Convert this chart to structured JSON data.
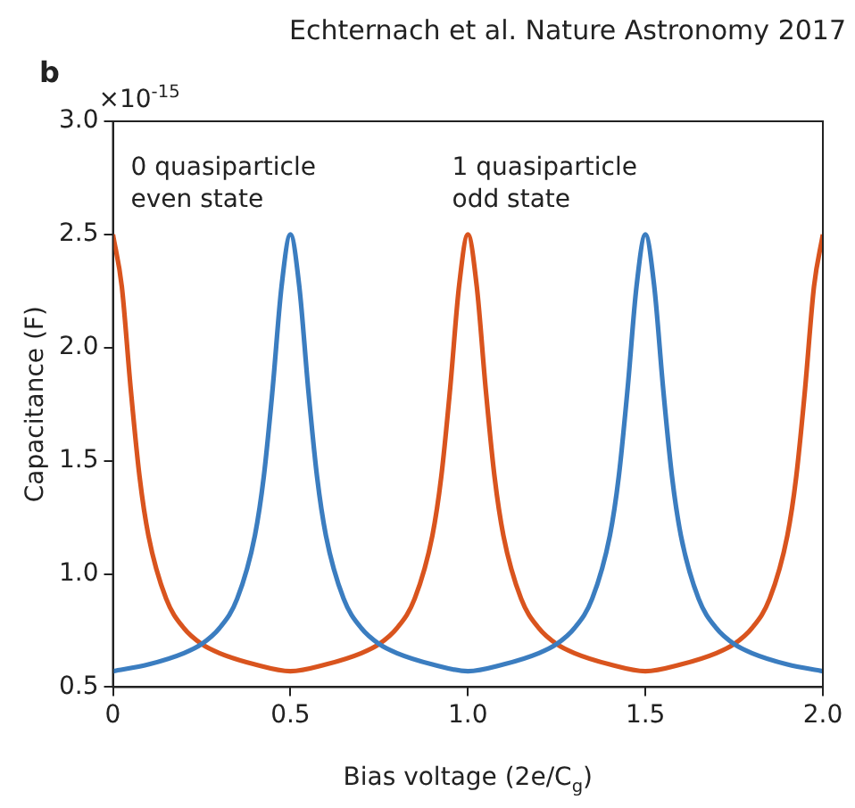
{
  "chart_data": {
    "type": "line",
    "title": "b",
    "subtitle": "Echternach et al. Nature Astronomy 2017",
    "xlabel": "Bias voltage (2e/C$_{g}$)",
    "ylabel": "Capacitance (F)",
    "annotations": [
      "×10$^{-15}$",
      "0 quasiparticle\neven state",
      "1 quasiparticle\nodd state"
    ],
    "xlim": [
      0,
      2
    ],
    "xticks": [
      0,
      0.5,
      {
        "value": 1,
        "label": "1.0"
      },
      1.5,
      {
        "value": 2,
        "label": "2.0"
      }
    ],
    "ylim": [
      0.5,
      3
    ],
    "yticks": [
      0.5,
      {
        "value": 1,
        "label": "1.0"
      },
      1.5,
      {
        "value": 2,
        "label": "2.0"
      },
      2.5,
      {
        "value": 3,
        "label": "3.0"
      }
    ],
    "grid": false,
    "legend": false,
    "marker": "none",
    "line_style": "solid",
    "series": [
      {
        "color": "#3b7dc0",
        "x": [
          0,
          0.1,
          0.2,
          0.25,
          0.3,
          0.35,
          0.4,
          0.425,
          0.45,
          0.475,
          0.5,
          0.525,
          0.55,
          0.575,
          0.6,
          0.65,
          0.7,
          0.75,
          0.8,
          0.9,
          1,
          1.1,
          1.2,
          1.25,
          1.3,
          1.35,
          1.4,
          1.425,
          1.45,
          1.475,
          1.5,
          1.525,
          1.55,
          1.575,
          1.6,
          1.65,
          1.7,
          1.75,
          1.8,
          1.9,
          2
        ],
        "values": [
          0.57,
          0.6,
          0.65,
          0.69,
          0.76,
          0.89,
          1.17,
          1.43,
          1.82,
          2.27,
          2.5,
          2.27,
          1.82,
          1.43,
          1.17,
          0.89,
          0.76,
          0.69,
          0.65,
          0.6,
          0.57,
          0.6,
          0.65,
          0.69,
          0.76,
          0.89,
          1.17,
          1.43,
          1.82,
          2.27,
          2.5,
          2.27,
          1.82,
          1.43,
          1.17,
          0.89,
          0.76,
          0.69,
          0.65,
          0.6,
          0.57
        ]
      },
      {
        "color": "#d9541e",
        "x": [
          0,
          0.025,
          0.05,
          0.075,
          0.1,
          0.15,
          0.2,
          0.25,
          0.3,
          0.4,
          0.5,
          0.6,
          0.7,
          0.75,
          0.8,
          0.85,
          0.9,
          0.925,
          0.95,
          0.975,
          1,
          1.025,
          1.05,
          1.075,
          1.1,
          1.15,
          1.2,
          1.25,
          1.3,
          1.4,
          1.5,
          1.6,
          1.7,
          1.75,
          1.8,
          1.85,
          1.9,
          1.925,
          1.95,
          1.975,
          2
        ],
        "values": [
          2.5,
          2.27,
          1.82,
          1.43,
          1.17,
          0.89,
          0.76,
          0.69,
          0.65,
          0.6,
          0.57,
          0.6,
          0.65,
          0.69,
          0.76,
          0.89,
          1.17,
          1.43,
          1.82,
          2.27,
          2.5,
          2.27,
          1.82,
          1.43,
          1.17,
          0.89,
          0.76,
          0.69,
          0.65,
          0.6,
          0.57,
          0.6,
          0.65,
          0.69,
          0.76,
          0.89,
          1.17,
          1.43,
          1.82,
          2.27,
          2.5
        ]
      }
    ]
  }
}
